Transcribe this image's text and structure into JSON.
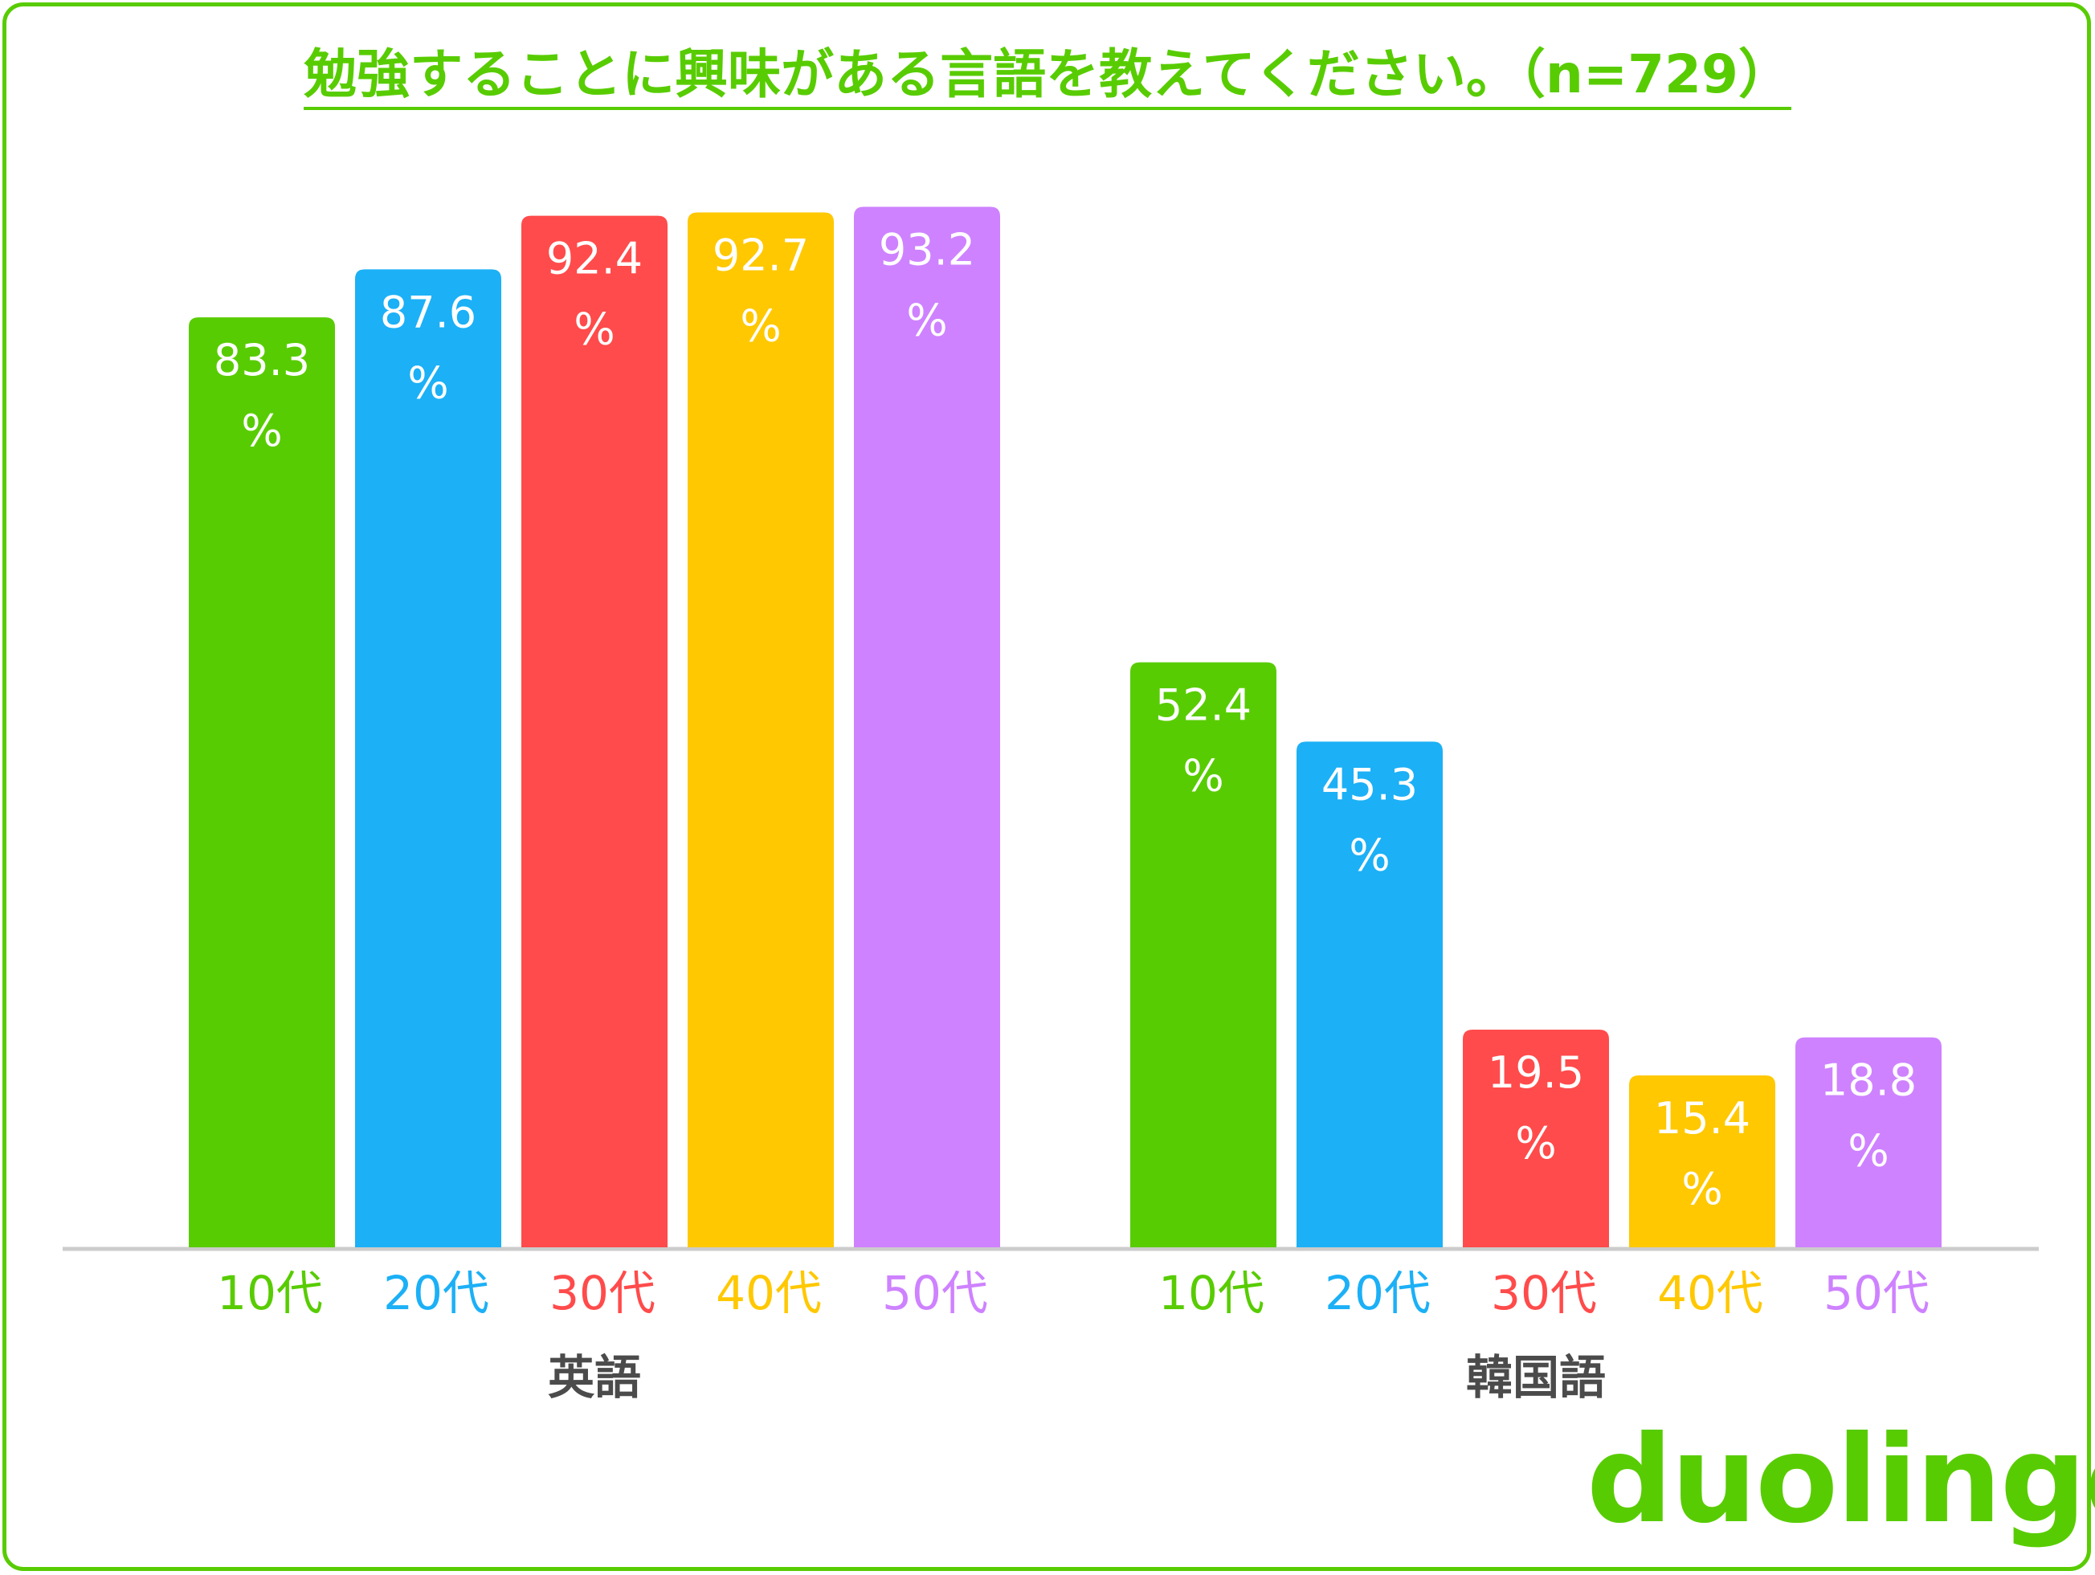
{
  "title": "勉強することに興味がある言語を教えてください。（n=729）",
  "logo": "duolingo",
  "colors": {
    "frame": "#58cc02",
    "title": "#58cc02",
    "group_label": "#4b4b4b",
    "axis": "#cccccc",
    "bar_label": "#ffffff"
  },
  "chart_data": {
    "type": "bar",
    "categories": [
      "英語",
      "韓国語"
    ],
    "unit": "%",
    "series": [
      {
        "name": "10代",
        "color": "#58cc02",
        "values": [
          83.3,
          52.4
        ]
      },
      {
        "name": "20代",
        "color": "#1cb0f6",
        "values": [
          87.6,
          45.3
        ]
      },
      {
        "name": "30代",
        "color": "#ff4b4b",
        "values": [
          92.4,
          19.5
        ]
      },
      {
        "name": "40代",
        "color": "#ffc800",
        "values": [
          92.7,
          15.4
        ]
      },
      {
        "name": "50代",
        "color": "#ce82ff",
        "values": [
          93.2,
          18.8
        ]
      }
    ],
    "ylim": [
      0,
      100
    ],
    "legend": "none",
    "grid": false
  }
}
